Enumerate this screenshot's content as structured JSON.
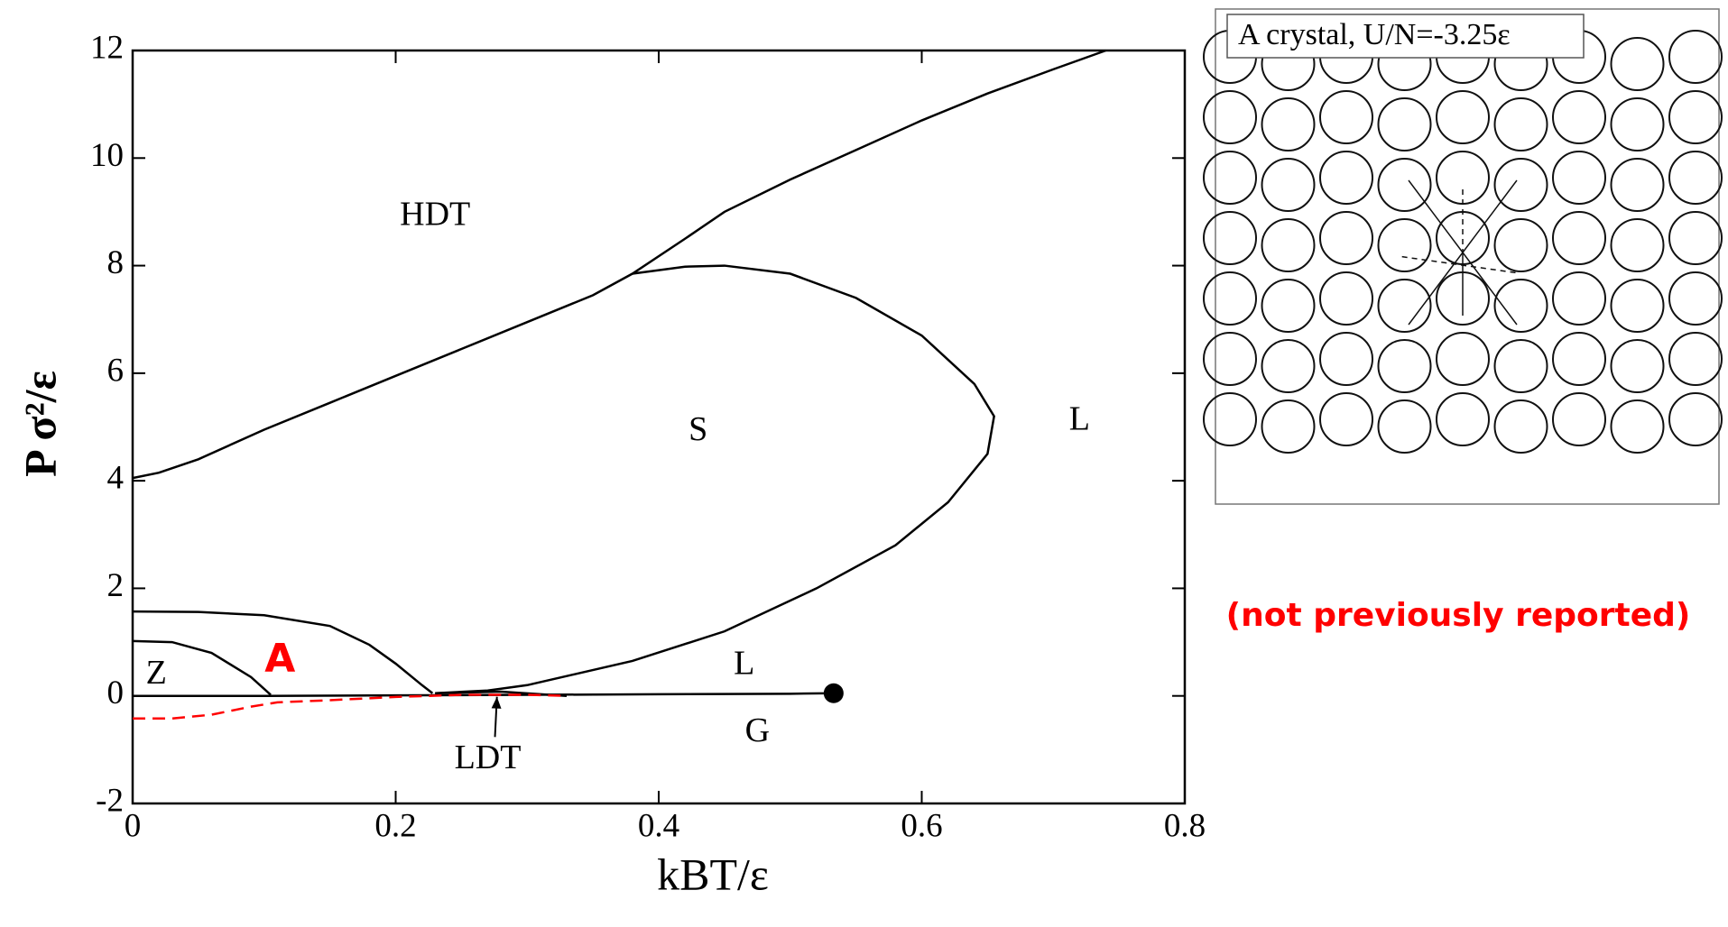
{
  "chart_data": {
    "type": "line",
    "x_label": "kBT/ε",
    "y_label": "P σ²/ε",
    "xlim": [
      0,
      0.8
    ],
    "ylim": [
      -2,
      12
    ],
    "xticks": [
      0,
      0.2,
      0.4,
      0.6,
      0.8
    ],
    "yticks": [
      -2,
      0,
      2,
      4,
      6,
      8,
      10,
      12
    ],
    "series": [
      {
        "color": "#000000",
        "dash": false,
        "x": [
          0,
          0.02,
          0.05,
          0.1,
          0.15,
          0.2,
          0.25,
          0.3,
          0.35,
          0.38,
          0.42,
          0.45,
          0.5,
          0.55,
          0.6,
          0.65,
          0.7,
          0.74
        ],
        "values": [
          4.05,
          4.15,
          4.4,
          4.95,
          5.45,
          5.95,
          6.45,
          6.95,
          7.45,
          7.85,
          8.5,
          9.0,
          9.6,
          10.15,
          10.7,
          11.2,
          11.65,
          12
        ]
      },
      {
        "color": "#000000",
        "dash": false,
        "x": [
          0.38,
          0.42,
          0.45,
          0.5,
          0.55,
          0.6,
          0.64,
          0.655,
          0.65,
          0.62,
          0.58,
          0.52,
          0.45,
          0.38,
          0.3,
          0.27,
          0.23
        ],
        "values": [
          7.85,
          7.98,
          8.0,
          7.85,
          7.4,
          6.7,
          5.8,
          5.2,
          4.5,
          3.6,
          2.8,
          2.0,
          1.2,
          0.65,
          0.2,
          0.1,
          0.05
        ]
      },
      {
        "color": "#000000",
        "dash": false,
        "x": [
          0,
          0.05,
          0.1,
          0.15,
          0.18,
          0.2,
          0.22,
          0.228
        ],
        "values": [
          1.57,
          1.56,
          1.5,
          1.3,
          0.95,
          0.6,
          0.2,
          0.05
        ]
      },
      {
        "color": "#000000",
        "dash": false,
        "x": [
          0,
          0.03,
          0.06,
          0.09,
          0.105
        ],
        "values": [
          1.02,
          1.0,
          0.8,
          0.35,
          0.02
        ]
      },
      {
        "color": "#000000",
        "dash": false,
        "x": [
          0,
          0.1,
          0.2,
          0.3,
          0.4,
          0.5,
          0.533
        ],
        "values": [
          0,
          0,
          0.01,
          0.02,
          0.03,
          0.04,
          0.05
        ]
      },
      {
        "color": "#000000",
        "dash": false,
        "x": [
          0.23,
          0.28,
          0.33
        ],
        "values": [
          0.05,
          0.08,
          0.0
        ]
      },
      {
        "color": "#ff0000",
        "dash": true,
        "x": [
          0,
          0.03,
          0.06,
          0.09,
          0.11,
          0.15,
          0.2,
          0.25,
          0.3,
          0.33
        ],
        "values": [
          -0.42,
          -0.42,
          -0.35,
          -0.2,
          -0.12,
          -0.08,
          -0.02,
          0.02,
          0.02,
          0.0
        ]
      }
    ],
    "critical_point": {
      "x": 0.533,
      "y": 0.05
    },
    "annotations": [
      {
        "text": "HDT",
        "x": 0.23,
        "y": 8.9,
        "color": "#000000"
      },
      {
        "text": "S",
        "x": 0.43,
        "y": 4.9,
        "color": "#000000"
      },
      {
        "text": "L",
        "x": 0.72,
        "y": 5.1,
        "color": "#000000"
      },
      {
        "text": "L",
        "x": 0.465,
        "y": 0.55,
        "color": "#000000"
      },
      {
        "text": "G",
        "x": 0.475,
        "y": -0.7,
        "color": "#000000"
      },
      {
        "text": "Z",
        "x": 0.018,
        "y": 0.38,
        "color": "#000000"
      },
      {
        "text": "A",
        "x": 0.112,
        "y": 0.65,
        "color": "#ff0000"
      },
      {
        "text": "LDT",
        "x": 0.27,
        "y": -1.2,
        "color": "#000000",
        "arrow_to": [
          0.277,
          0.05
        ]
      }
    ]
  },
  "crystal_panel": {
    "label": "A crystal, U/N=-3.25ε",
    "note": "(not previously reported)"
  }
}
